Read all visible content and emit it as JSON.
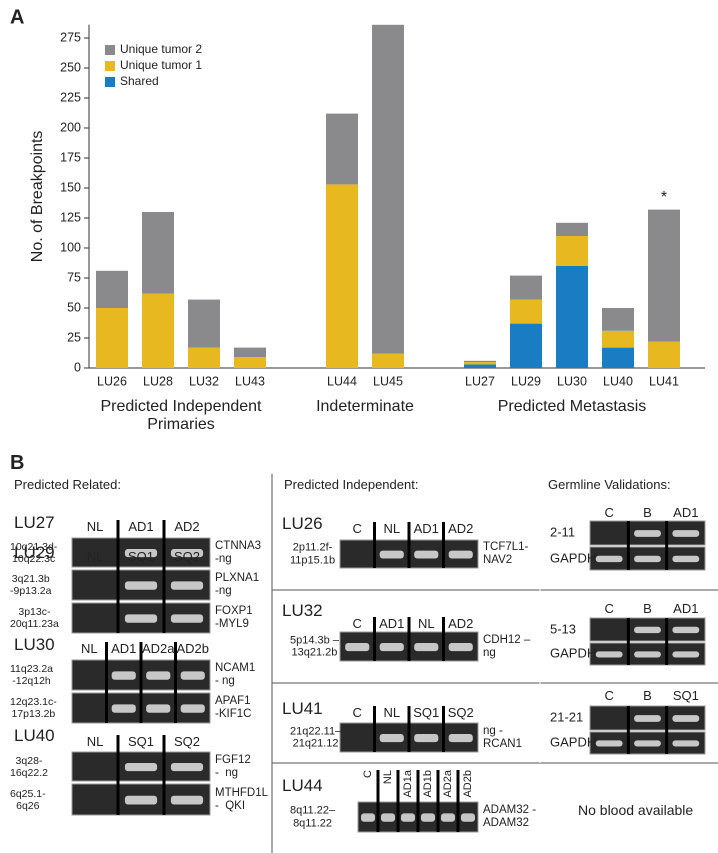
{
  "chart_data": {
    "type": "stacked_bar",
    "panel_label": "A",
    "y_label": "No. of Breakpoints",
    "categories": [
      "LU26",
      "LU28",
      "LU32",
      "LU43",
      "LU44",
      "LU45",
      "LU27",
      "LU29",
      "LU30",
      "LU40",
      "LU41"
    ],
    "groups": [
      {
        "label": "Predicted Independent Primaries",
        "categories": [
          "LU26",
          "LU28",
          "LU32",
          "LU43"
        ]
      },
      {
        "label": "Indeterminate",
        "categories": [
          "LU44",
          "LU45"
        ]
      },
      {
        "label": "Predicted Metastasis",
        "categories": [
          "LU27",
          "LU29",
          "LU30",
          "LU40",
          "LU41"
        ]
      }
    ],
    "series": [
      {
        "name": "Shared",
        "color": "#1a7dc4",
        "values": [
          0,
          0,
          0,
          0,
          0,
          0,
          3,
          37,
          85,
          17,
          0
        ]
      },
      {
        "name": "Unique tumor 1",
        "color": "#e8b820",
        "values": [
          50,
          62,
          17,
          9,
          153,
          12,
          2,
          20,
          25,
          14,
          22
        ]
      },
      {
        "name": "Unique tumor 2",
        "color": "#8a8a8d",
        "values": [
          31,
          68,
          40,
          8,
          59,
          274,
          1,
          20,
          11,
          19,
          110
        ]
      }
    ],
    "ylim": [
      0,
      286
    ],
    "yticks": [
      0,
      25,
      50,
      75,
      100,
      125,
      150,
      175,
      200,
      225,
      250,
      275
    ],
    "annotations": [
      {
        "text": "*",
        "category": "LU41"
      }
    ]
  },
  "panel_b": {
    "panel_label": "B",
    "related": {
      "title": "Predicted Related:",
      "cases": [
        {
          "id": "LU27",
          "lanes": [
            "NL",
            "AD1",
            "AD2"
          ],
          "rows": [
            {
              "left": "10q21.3d-\n10q22.3c",
              "right": "CTNNA3\n-ng"
            }
          ]
        },
        {
          "id": "LU29",
          "lanes": [
            "NL",
            "SQ1",
            "SQ2"
          ],
          "rows": [
            {
              "left": "3q21.3b\n-9p13.2a",
              "right": "PLXNA1\n-ng"
            },
            {
              "left": "3p13c-\n20q11.23a",
              "right": "FOXP1\n-MYL9"
            }
          ]
        },
        {
          "id": "LU30",
          "lanes": [
            "NL",
            "AD1",
            "AD2a",
            "AD2b"
          ],
          "rows": [
            {
              "left": "11q23.2a\n-12q12h",
              "right": "NCAM1\n- ng"
            },
            {
              "left": "12q23.1c-\n17p13.2b",
              "right": "APAF1\n-KIF1C"
            }
          ]
        },
        {
          "id": "LU40",
          "lanes": [
            "NL",
            "SQ1",
            "SQ2"
          ],
          "rows": [
            {
              "left": "3q28-\n16q22.2",
              "right": "FGF12\n-  ng"
            },
            {
              "left": "6q25.1-\n6q26",
              "right": "MTHFD1L\n-  QKI"
            }
          ]
        }
      ]
    },
    "independent": {
      "title": "Predicted Independent:",
      "cases": [
        {
          "id": "LU26",
          "lanes": [
            "C",
            "NL",
            "AD1",
            "AD2"
          ],
          "rows": [
            {
              "left": "2p11.2f-\n11p15.1b",
              "right": "TCF7L1-\nNAV2"
            }
          ]
        },
        {
          "id": "LU32",
          "lanes": [
            "C",
            "AD1",
            "NL",
            "AD2"
          ],
          "rows": [
            {
              "left": "5p14.3b –\n13q21.2b",
              "right": "CDH12 –\nng"
            }
          ]
        },
        {
          "id": "LU41",
          "lanes": [
            "C",
            "NL",
            "SQ1",
            "SQ2"
          ],
          "rows": [
            {
              "left": "21q22.11–\n21q21.12",
              "right": "ng -\nRCAN1"
            }
          ]
        },
        {
          "id": "LU44",
          "lanes": [
            "C",
            "NL",
            "AD1a",
            "AD1b",
            "AD2a",
            "AD2b"
          ],
          "rows": [
            {
              "left": "8q11.22–\n8q11.22",
              "right": "ADAM32 -\nADAM32"
            }
          ]
        }
      ]
    },
    "germline": {
      "title": "Germline Validations:",
      "cases": [
        {
          "lanes": [
            "C",
            "B",
            "AD1"
          ],
          "rows": [
            {
              "left": "2-11"
            },
            {
              "left": "GAPDH"
            }
          ]
        },
        {
          "lanes": [
            "C",
            "B",
            "AD1"
          ],
          "rows": [
            {
              "left": "5-13"
            },
            {
              "left": "GAPDH"
            }
          ]
        },
        {
          "lanes": [
            "C",
            "B",
            "SQ1"
          ],
          "rows": [
            {
              "left": "21-21"
            },
            {
              "left": "GAPDH"
            }
          ]
        }
      ],
      "note": "No blood available"
    }
  }
}
